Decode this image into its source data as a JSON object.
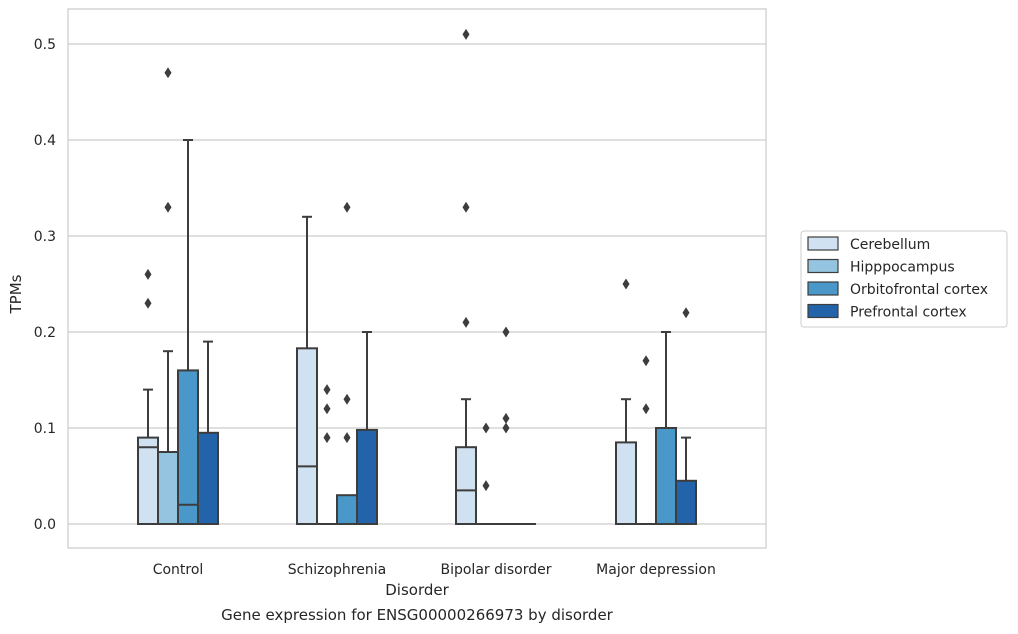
{
  "caption": "Gene expression for ENSG00000266973 by disorder",
  "chart_data": {
    "type": "box",
    "title": "",
    "xlabel": "Disorder",
    "ylabel": "TPMs",
    "ylim": [
      -0.025,
      0.537
    ],
    "yticks": [
      0.0,
      0.1,
      0.2,
      0.3,
      0.4,
      0.5
    ],
    "ytick_labels": [
      "0.0",
      "0.1",
      "0.2",
      "0.3",
      "0.4",
      "0.5"
    ],
    "grid": "horizontal",
    "legend_position": "right",
    "categories": [
      "Control",
      "Schizophrenia",
      "Bipolar disorder",
      "Major depression"
    ],
    "colors": [
      "#d0e1f2",
      "#94c4df",
      "#4a98c9",
      "#2363a9"
    ],
    "series": [
      {
        "name": "Cerebellum",
        "boxes": [
          {
            "q1": 0.0,
            "median": 0.08,
            "q3": 0.09,
            "whisker_low": 0.0,
            "whisker_high": 0.14,
            "outliers": [
              0.26,
              0.23
            ]
          },
          {
            "q1": 0.0,
            "median": 0.06,
            "q3": 0.183,
            "whisker_low": 0.0,
            "whisker_high": 0.32,
            "outliers": []
          },
          {
            "q1": 0.0,
            "median": 0.035,
            "q3": 0.08,
            "whisker_low": 0.0,
            "whisker_high": 0.13,
            "outliers": [
              0.51,
              0.33,
              0.21
            ]
          },
          {
            "q1": 0.0,
            "median": 0.0,
            "q3": 0.085,
            "whisker_low": 0.0,
            "whisker_high": 0.13,
            "outliers": [
              0.25
            ]
          }
        ]
      },
      {
        "name": "Hipppocampus",
        "boxes": [
          {
            "q1": 0.0,
            "median": 0.0,
            "q3": 0.075,
            "whisker_low": 0.0,
            "whisker_high": 0.18,
            "outliers": [
              0.47,
              0.33
            ]
          },
          {
            "q1": 0.0,
            "median": 0.0,
            "q3": 0.0,
            "whisker_low": 0.0,
            "whisker_high": 0.0,
            "outliers": [
              0.14,
              0.12,
              0.09
            ]
          },
          {
            "q1": 0.0,
            "median": 0.0,
            "q3": 0.0,
            "whisker_low": 0.0,
            "whisker_high": 0.0,
            "outliers": [
              0.1,
              0.04
            ]
          },
          {
            "q1": 0.0,
            "median": 0.0,
            "q3": 0.0,
            "whisker_low": 0.0,
            "whisker_high": 0.0,
            "outliers": [
              0.17,
              0.12
            ]
          }
        ]
      },
      {
        "name": "Orbitofrontal cortex",
        "boxes": [
          {
            "q1": 0.0,
            "median": 0.02,
            "q3": 0.16,
            "whisker_low": 0.0,
            "whisker_high": 0.4,
            "outliers": []
          },
          {
            "q1": 0.0,
            "median": 0.0,
            "q3": 0.03,
            "whisker_low": 0.0,
            "whisker_high": 0.03,
            "outliers": [
              0.33,
              0.13,
              0.09
            ]
          },
          {
            "q1": 0.0,
            "median": 0.0,
            "q3": 0.0,
            "whisker_low": 0.0,
            "whisker_high": 0.0,
            "outliers": [
              0.2,
              0.11,
              0.1
            ]
          },
          {
            "q1": 0.0,
            "median": 0.0,
            "q3": 0.1,
            "whisker_low": 0.0,
            "whisker_high": 0.2,
            "outliers": []
          }
        ]
      },
      {
        "name": "Prefrontal cortex",
        "boxes": [
          {
            "q1": 0.0,
            "median": 0.0,
            "q3": 0.095,
            "whisker_low": 0.0,
            "whisker_high": 0.19,
            "outliers": []
          },
          {
            "q1": 0.0,
            "median": 0.0,
            "q3": 0.098,
            "whisker_low": 0.0,
            "whisker_high": 0.2,
            "outliers": []
          },
          {
            "q1": 0.0,
            "median": 0.0,
            "q3": 0.0,
            "whisker_low": 0.0,
            "whisker_high": 0.0,
            "outliers": []
          },
          {
            "q1": 0.0,
            "median": 0.0,
            "q3": 0.045,
            "whisker_low": 0.0,
            "whisker_high": 0.09,
            "outliers": [
              0.22
            ]
          }
        ]
      }
    ]
  }
}
